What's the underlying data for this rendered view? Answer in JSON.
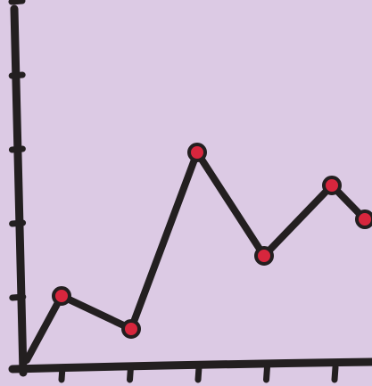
{
  "chart_data": {
    "type": "line",
    "x": [
      0,
      1,
      2,
      3,
      4,
      5,
      6
    ],
    "values": [
      0,
      2.1,
      1.3,
      5.1,
      3.2,
      4.4,
      3.8
    ],
    "ylim": [
      0,
      10
    ],
    "xlim": [
      0,
      8
    ],
    "y_ticks": [
      2,
      4,
      6,
      8,
      10
    ],
    "x_ticks": [
      1,
      2,
      3,
      4,
      5
    ],
    "grid": false,
    "colors": {
      "background": "#dccae4",
      "ink": "#231f20",
      "marker_fill": "#d7263d"
    }
  }
}
